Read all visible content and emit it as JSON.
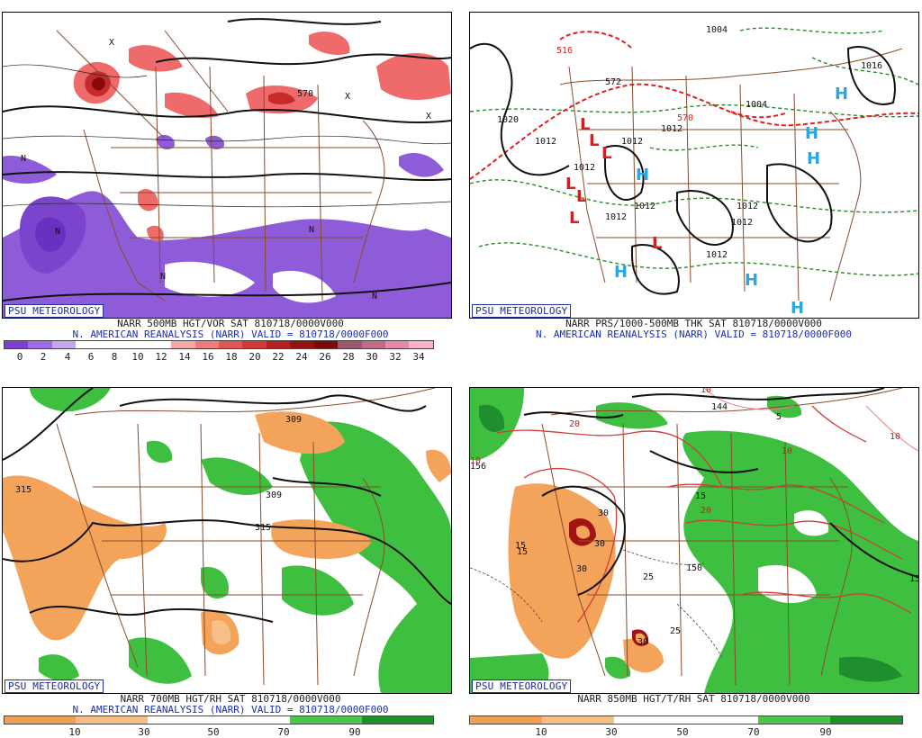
{
  "panels": [
    {
      "id": "p1",
      "badge": "PSU METEOROLOGY",
      "caption_line1": "NARR 500MB HGT/VOR SAT 810718/0000V000",
      "caption_line2": "N. AMERICAN REANALYSIS (NARR) VALID = 810718/0000F000",
      "scale_ticks": [
        "0",
        "2",
        "4",
        "6",
        "8",
        "10",
        "12",
        "14",
        "16",
        "18",
        "20",
        "22",
        "24",
        "26",
        "28",
        "30",
        "32",
        "34"
      ],
      "scale_colors": [
        "#7e3fd1",
        "#9e6be0",
        "#c4a7ee",
        "#ffffff",
        "#ffffff",
        "#ffffff",
        "#ffffff",
        "#f6a6a6",
        "#ef7b7b",
        "#e25656",
        "#d23a3a",
        "#b52020",
        "#951010",
        "#7a0a0a",
        "#9a5a6a",
        "#c06c88",
        "#e28aa8",
        "#f6b3c6"
      ],
      "map_labels": [
        "570",
        "N",
        "N",
        "N",
        "N",
        "N",
        "X",
        "X",
        "X"
      ]
    },
    {
      "id": "p2",
      "badge": "PSU METEOROLOGY",
      "caption_line1": "NARR PRS/1000-500MB THK SAT 810718/0000V000",
      "caption_line2": "N. AMERICAN REANALYSIS (NARR) VALID = 810718/0000F000",
      "map_labels": [
        "1020",
        "1012",
        "1012",
        "1012",
        "1012",
        "1012",
        "1012",
        "1004",
        "1012",
        "1012",
        "516",
        "572",
        "570",
        "1004",
        "1016",
        "1012"
      ],
      "highs": [
        "H",
        "H",
        "H",
        "H",
        "H",
        "H",
        "H"
      ],
      "lows": [
        "L",
        "L",
        "L",
        "L",
        "L",
        "L",
        "L"
      ]
    },
    {
      "id": "p3",
      "badge": "PSU METEOROLOGY",
      "caption_line1": "NARR 700MB HGT/RH SAT 810718/0000V000",
      "caption_line2": "N. AMERICAN REANALYSIS (NARR) VALID = 810718/0000F000",
      "scale_ticks": [
        "10",
        "30",
        "50",
        "70",
        "90"
      ],
      "scale_colors": [
        "#f2a055",
        "#f6bf88",
        "#ffffff",
        "#ffffff",
        "#4ec34e",
        "#1f8f2a"
      ],
      "map_labels": [
        "309",
        "315",
        "309",
        "315"
      ]
    },
    {
      "id": "p4",
      "badge": "PSU METEOROLOGY",
      "caption_line1": "NARR 850MB HGT/T/RH SAT 810718/0000V000",
      "scale_ticks": [
        "10",
        "30",
        "50",
        "70",
        "90"
      ],
      "scale_colors": [
        "#f2a055",
        "#f6bf88",
        "#ffffff",
        "#ffffff",
        "#4ec34e",
        "#1f8f2a"
      ],
      "map_labels": [
        "144",
        "156",
        "15",
        "15",
        "150",
        "25",
        "25",
        "30",
        "30",
        "30",
        "30",
        "20",
        "20",
        "10",
        "10",
        "10",
        "15",
        "5",
        "10",
        "15"
      ]
    }
  ],
  "colors": {
    "purple": "#8e5cd9",
    "red_fill": "#ef6a6a",
    "dark_red": "#a21414",
    "orange": "#f4a45a",
    "green": "#3fbf3f",
    "dark_green": "#1e8e2e",
    "map_brown": "#8a4b2a",
    "contour": "#111111",
    "green_dash": "#2a8a2a",
    "red_dash": "#e02020",
    "high_blue": "#2aa7e0",
    "low_red": "#d42020"
  }
}
